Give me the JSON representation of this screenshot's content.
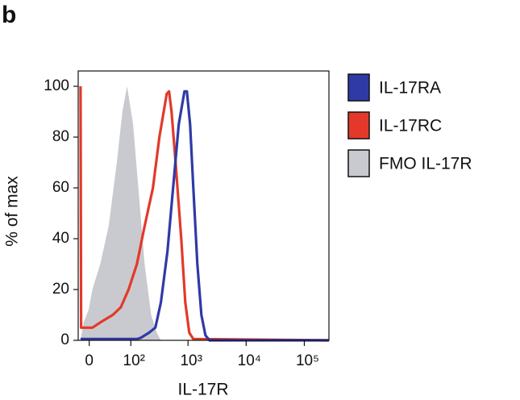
{
  "panel_label": "b",
  "chart_data": {
    "type": "histogram-overlay",
    "xscale": "logicle",
    "xlabel": "IL-17R",
    "ylabel": "% of max",
    "xlim": [
      -18,
      265000
    ],
    "ylim": [
      0,
      100
    ],
    "xticks": [
      0,
      {
        "value": 100,
        "label": "10²"
      },
      {
        "value": 1000,
        "label": "10³"
      },
      {
        "value": 10000,
        "label": "10⁴"
      },
      {
        "value": 100000,
        "label": "10⁵"
      }
    ],
    "yticks": [
      0,
      20,
      40,
      60,
      80,
      100
    ],
    "legend": "right",
    "series": [
      {
        "name": "IL-17RA",
        "color": "#2f3aa6",
        "filled": false,
        "x": [
          -14,
          129,
          152,
          211,
          273,
          341,
          442,
          554,
          693,
          868,
          955,
          1085,
          1233,
          1447,
          1697,
          1990,
          2340,
          265000
        ],
        "values": [
          0.5,
          0.5,
          1,
          3,
          5,
          15,
          35,
          60,
          85,
          98,
          98,
          85,
          60,
          30,
          10,
          2,
          0,
          0
        ]
      },
      {
        "name": "IL-17RC",
        "color": "#e2392b",
        "filled": false,
        "x": [
          -14,
          -13,
          5,
          18,
          43,
          64,
          91,
          129,
          177,
          248,
          321,
          429,
          472,
          520,
          610,
          763,
          896,
          1052,
          1233,
          265000
        ],
        "values": [
          100,
          5,
          5,
          7,
          10,
          13,
          20,
          30,
          45,
          60,
          80,
          97,
          98,
          90,
          70,
          40,
          15,
          3,
          0.5,
          0
        ]
      },
      {
        "name": "FMO IL-17R",
        "color": "#c9cacf",
        "filled": true,
        "x": [
          -14,
          -9,
          -1,
          5,
          18,
          34,
          53,
          69,
          85,
          110,
          137,
          177,
          231,
          289,
          341
        ],
        "values": [
          0,
          7,
          12,
          20,
          30,
          45,
          70,
          90,
          100,
          85,
          60,
          30,
          10,
          3,
          0
        ]
      }
    ]
  }
}
